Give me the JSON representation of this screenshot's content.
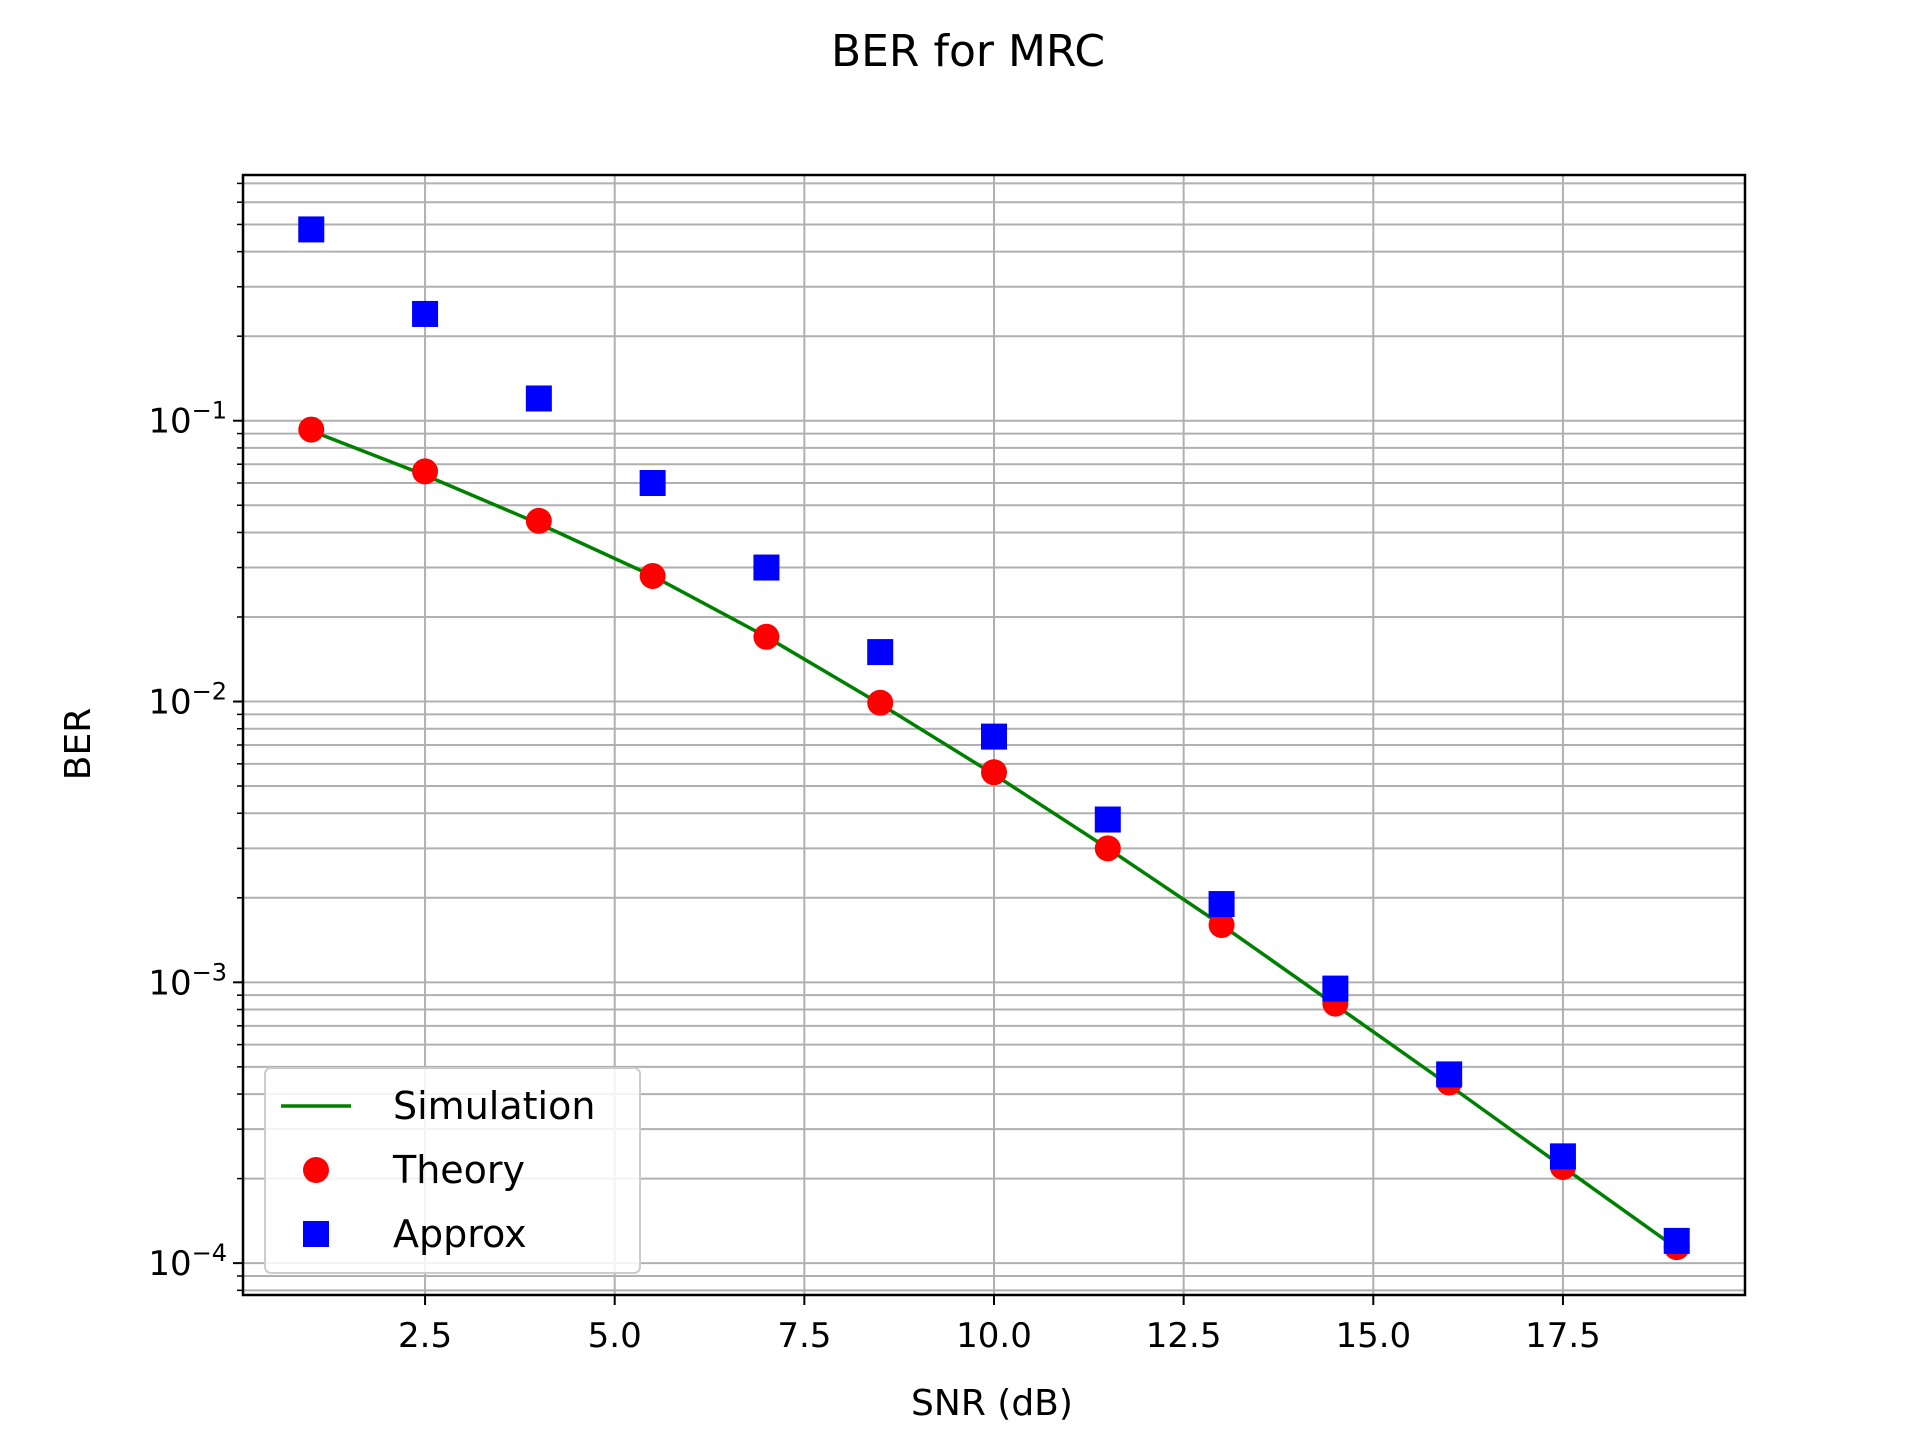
{
  "chart_data": {
    "type": "line",
    "title": "BER for MRC",
    "xlabel": "SNR (dB)",
    "ylabel": "BER",
    "xscale": "linear",
    "yscale": "log",
    "xlim": [
      0.1,
      19.9
    ],
    "ylim": [
      7.7e-05,
      0.75
    ],
    "grid": "both (major and minor)",
    "legend_position": "lower-left",
    "x_ticks": [
      2.5,
      5.0,
      7.5,
      10.0,
      12.5,
      15.0,
      17.5
    ],
    "x_tick_labels": [
      "2.5",
      "5.0",
      "7.5",
      "10.0",
      "12.5",
      "15.0",
      "17.5"
    ],
    "y_tick_labels": [
      {
        "value": 0.1,
        "base": "10",
        "exp": "−1"
      },
      {
        "value": 0.01,
        "base": "10",
        "exp": "−2"
      },
      {
        "value": 0.001,
        "base": "10",
        "exp": "−3"
      },
      {
        "value": 0.0001,
        "base": "10",
        "exp": "−4"
      }
    ],
    "x": [
      1.0,
      2.5,
      4.0,
      5.5,
      7.0,
      8.5,
      10.0,
      11.5,
      13.0,
      14.5,
      16.0,
      17.5,
      19.0
    ],
    "series": [
      {
        "name": "Simulation",
        "style": "line",
        "color": "#008000",
        "values": [
          0.092,
          0.064,
          0.043,
          0.028,
          0.017,
          0.0098,
          0.0055,
          0.003,
          0.0016,
          0.00083,
          0.00043,
          0.00022,
          0.000113
        ]
      },
      {
        "name": "Theory",
        "style": "circle",
        "color": "#ff0000",
        "values": [
          0.093,
          0.066,
          0.044,
          0.028,
          0.017,
          0.0099,
          0.0056,
          0.003,
          0.0016,
          0.00084,
          0.00044,
          0.00022,
          0.000114
        ]
      },
      {
        "name": "Approx",
        "style": "square",
        "color": "#0000ff",
        "values": [
          0.48,
          0.24,
          0.12,
          0.06,
          0.03,
          0.015,
          0.0075,
          0.0038,
          0.0019,
          0.00095,
          0.00047,
          0.00024,
          0.00012
        ]
      }
    ]
  }
}
